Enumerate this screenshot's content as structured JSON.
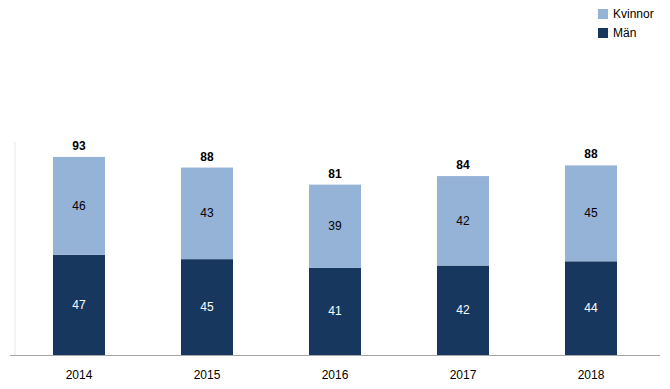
{
  "chart_data": {
    "type": "bar",
    "stacked": true,
    "data_labels": true,
    "tick_labels": "x",
    "legend": "top right",
    "categories": [
      "2014",
      "2015",
      "2016",
      "2017",
      "2018"
    ],
    "series": [
      {
        "name": "Män",
        "color": "#17375e",
        "values": [
          47,
          45,
          41,
          42,
          44
        ]
      },
      {
        "name": "Kvinnor",
        "color": "#95b3d7",
        "values": [
          46,
          43,
          39,
          42,
          45
        ]
      }
    ],
    "totals": [
      93,
      88,
      81,
      84,
      88
    ],
    "ylim": [
      0,
      100
    ]
  }
}
